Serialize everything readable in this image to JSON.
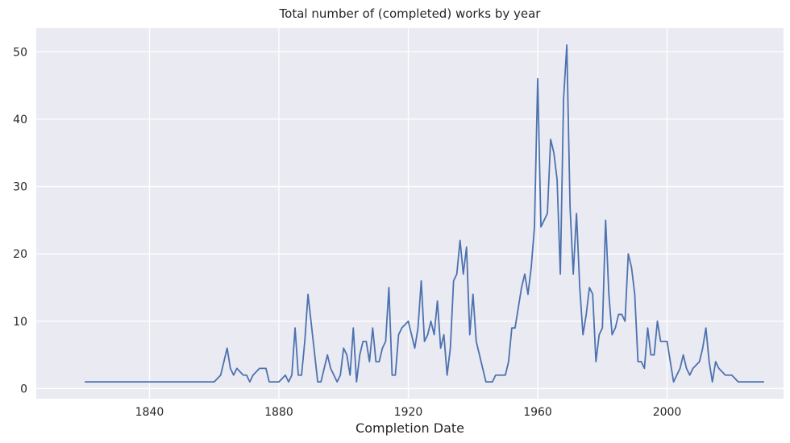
{
  "chart_data": {
    "type": "line",
    "title": "Total number of (completed) works by year",
    "xlabel": "Completion Date",
    "ylabel": "",
    "xlim": [
      1805,
      2036
    ],
    "ylim": [
      -1.5,
      53.5
    ],
    "x_ticks": [
      1840,
      1880,
      1920,
      1960,
      2000
    ],
    "y_ticks": [
      0,
      10,
      20,
      30,
      40,
      50
    ],
    "grid": true,
    "legend": "none",
    "colors": {
      "line": "#4c72b0",
      "background": "#eaeaf2",
      "grid": "#ffffff"
    },
    "series": [
      {
        "x": [
          1820,
          1860,
          1862,
          1864,
          1865,
          1866,
          1867,
          1869,
          1870,
          1871,
          1872,
          1874,
          1875,
          1876,
          1877,
          1878,
          1880,
          1882,
          1883,
          1884,
          1885,
          1886,
          1887,
          1888,
          1889,
          1892,
          1893,
          1895,
          1896,
          1898,
          1899,
          1900,
          1901,
          1902,
          1903,
          1904,
          1905,
          1906,
          1907,
          1908,
          1909,
          1910,
          1911,
          1912,
          1913,
          1914,
          1915,
          1916,
          1917,
          1918,
          1920,
          1921,
          1922,
          1923,
          1924,
          1925,
          1926,
          1927,
          1928,
          1929,
          1930,
          1931,
          1932,
          1933,
          1934,
          1935,
          1936,
          1937,
          1938,
          1939,
          1940,
          1941,
          1942,
          1943,
          1944,
          1945,
          1946,
          1947,
          1948,
          1949,
          1950,
          1951,
          1952,
          1953,
          1954,
          1955,
          1956,
          1957,
          1958,
          1959,
          1960,
          1961,
          1962,
          1963,
          1964,
          1965,
          1966,
          1967,
          1968,
          1969,
          1970,
          1971,
          1972,
          1973,
          1974,
          1975,
          1976,
          1977,
          1978,
          1979,
          1980,
          1981,
          1982,
          1983,
          1984,
          1985,
          1986,
          1987,
          1988,
          1989,
          1990,
          1991,
          1992,
          1993,
          1994,
          1995,
          1996,
          1997,
          1998,
          1999,
          2000,
          2001,
          2002,
          2003,
          2004,
          2005,
          2006,
          2007,
          2008,
          2009,
          2010,
          2011,
          2012,
          2013,
          2014,
          2015,
          2016,
          2017,
          2018,
          2019,
          2020,
          2022,
          2023,
          2025,
          2026,
          2027,
          2028,
          2029,
          2030
        ],
        "values": [
          1,
          1,
          2,
          6,
          3,
          2,
          3,
          2,
          2,
          1,
          2,
          3,
          3,
          3,
          1,
          1,
          1,
          2,
          1,
          2,
          9,
          2,
          2,
          7,
          14,
          1,
          1,
          5,
          3,
          1,
          2,
          6,
          5,
          2,
          9,
          1,
          5,
          7,
          7,
          4,
          9,
          4,
          4,
          6,
          7,
          15,
          2,
          2,
          8,
          9,
          10,
          8,
          6,
          9,
          16,
          7,
          8,
          10,
          8,
          13,
          6,
          8,
          2,
          6,
          16,
          17,
          22,
          17,
          21,
          8,
          14,
          7,
          5,
          3,
          1,
          1,
          1,
          2,
          2,
          2,
          2,
          4,
          9,
          9,
          12,
          15,
          17,
          14,
          18,
          24,
          46,
          24,
          25,
          26,
          37,
          35,
          31,
          17,
          43,
          51,
          27,
          17,
          26,
          15,
          8,
          11,
          15,
          14,
          4,
          8,
          9,
          25,
          14,
          8,
          9,
          11,
          11,
          10,
          20,
          18,
          14,
          4,
          4,
          3,
          9,
          5,
          5,
          10,
          7,
          7,
          7,
          4,
          1,
          2,
          3,
          5,
          3,
          2,
          3,
          3.5,
          4,
          6,
          9,
          4,
          1,
          4,
          3,
          2.5,
          2,
          2,
          2,
          1,
          1,
          1,
          1,
          1,
          1,
          1,
          1
        ]
      }
    ]
  }
}
